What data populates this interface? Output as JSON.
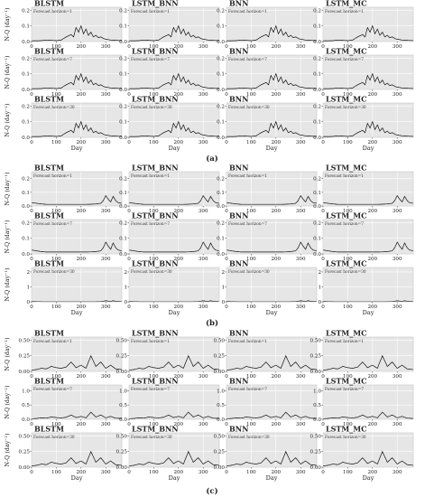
{
  "chart_data": [
    {
      "type": "area",
      "label": "(a)",
      "xlabel": "Day",
      "ylabel": "N-Q (day⁻¹)",
      "xlim": [
        0,
        365
      ],
      "xticks": [
        0,
        100,
        200,
        300
      ],
      "models": [
        "BLSTM",
        "LSTM_BNN",
        "BNN",
        "LSTM_MC"
      ],
      "horizons": [
        "Forecast horizon=1",
        "Forecast horizon=7",
        "Forecast horizon=30"
      ],
      "ylim": [
        [
          0,
          0.22
        ],
        [
          0,
          0.22
        ],
        [
          0,
          0.22
        ]
      ],
      "yticks": [
        [
          0.0,
          0.1,
          0.2
        ],
        [
          0.0,
          0.1,
          0.2
        ],
        [
          0.0,
          0.1,
          0.2
        ]
      ],
      "observed": {
        "x": [
          0,
          20,
          40,
          60,
          80,
          100,
          120,
          140,
          160,
          170,
          180,
          190,
          200,
          210,
          220,
          230,
          240,
          250,
          260,
          270,
          280,
          290,
          300,
          320,
          340,
          365
        ],
        "y": [
          0.005,
          0.005,
          0.006,
          0.01,
          0.008,
          0.006,
          0.01,
          0.03,
          0.045,
          0.03,
          0.09,
          0.06,
          0.1,
          0.05,
          0.08,
          0.04,
          0.06,
          0.03,
          0.04,
          0.025,
          0.03,
          0.02,
          0.015,
          0.01,
          0.008,
          0.006
        ]
      },
      "uncertainty": [
        [
          [
            0.02,
            0.02,
            0.02,
            0.03
          ],
          [
            0.02,
            0.02,
            0.03,
            0.08
          ],
          [
            0.02,
            0.02,
            0.03,
            0.1
          ]
        ],
        [
          [
            0.02,
            0.02,
            0.03,
            0.08
          ],
          [
            0.02,
            0.02,
            0.03,
            0.08
          ],
          [
            0.02,
            0.02,
            0.03,
            0.1
          ]
        ],
        [
          [
            0.02,
            0.03,
            0.03,
            0.1
          ],
          [
            0.02,
            0.03,
            0.04,
            0.1
          ],
          [
            0.02,
            0.03,
            0.04,
            0.1
          ]
        ]
      ]
    },
    {
      "type": "area",
      "label": "(b)",
      "xlabel": "Day",
      "ylabel": "N-Q (day⁻¹)",
      "xlim": [
        0,
        365
      ],
      "xticks": [
        0,
        100,
        200,
        300
      ],
      "models": [
        "BLSTM",
        "LSTM_BNN",
        "BNN",
        "LSTM_MC"
      ],
      "horizons": [
        "Forecast horizon=1",
        "Forecast horizon=7",
        "Forecast horizon=30"
      ],
      "ylim": [
        [
          0,
          0.25
        ],
        [
          0,
          0.22
        ],
        [
          0,
          2.3
        ]
      ],
      "yticks": [
        [
          0.0,
          0.1,
          0.2
        ],
        [
          0.0,
          0.1,
          0.2
        ],
        [
          0,
          1,
          2
        ]
      ],
      "observed": {
        "x": [
          0,
          20,
          40,
          60,
          80,
          100,
          120,
          140,
          160,
          180,
          200,
          220,
          240,
          260,
          280,
          290,
          300,
          310,
          320,
          330,
          340,
          350,
          365
        ],
        "y": [
          0.025,
          0.02,
          0.015,
          0.012,
          0.012,
          0.012,
          0.012,
          0.012,
          0.012,
          0.012,
          0.012,
          0.012,
          0.013,
          0.015,
          0.02,
          0.04,
          0.075,
          0.05,
          0.03,
          0.07,
          0.04,
          0.025,
          0.02
        ]
      },
      "uncertainty": [
        [
          [
            0.01,
            0.005,
            0.02,
            0.02
          ],
          [
            0.01,
            0.01,
            0.15,
            0.05
          ],
          [
            0.01,
            0.01,
            0.02,
            0.15
          ]
        ],
        [
          [
            0.01,
            0.02,
            0.05,
            0.02
          ],
          [
            0.01,
            0.04,
            0.19,
            0.02
          ],
          [
            0.01,
            0.02,
            0.03,
            0.02
          ]
        ],
        [
          [
            0.05,
            0.05,
            1.2,
            0.05
          ],
          [
            0.05,
            0.1,
            1.85,
            0.2
          ],
          [
            0.05,
            0.08,
            1.1,
            0.15
          ]
        ]
      ]
    },
    {
      "type": "area",
      "label": "(c)",
      "xlabel": "Day",
      "ylabel": "N-Q (day⁻¹)",
      "xlim": [
        0,
        365
      ],
      "xticks": [
        0,
        100,
        200,
        300
      ],
      "models": [
        "BLSTM",
        "LSTM_BNN",
        "BNN",
        "LSTM_MC"
      ],
      "horizons": [
        "Forecast horizon=1",
        "Forecast horizon=7",
        "Forecast horizon=30"
      ],
      "ylim": [
        [
          0,
          0.55
        ],
        [
          0,
          1.2
        ],
        [
          0,
          0.55
        ]
      ],
      "yticks": [
        [
          0.0,
          0.25,
          0.5
        ],
        [
          0.0,
          0.5,
          1.0
        ],
        [
          0.0,
          0.25,
          0.5
        ]
      ],
      "observed": {
        "x": [
          0,
          20,
          40,
          60,
          80,
          100,
          120,
          140,
          160,
          180,
          200,
          220,
          240,
          260,
          280,
          300,
          320,
          340,
          365
        ],
        "y": [
          0.02,
          0.03,
          0.05,
          0.04,
          0.08,
          0.06,
          0.05,
          0.07,
          0.15,
          0.06,
          0.1,
          0.05,
          0.25,
          0.08,
          0.15,
          0.05,
          0.1,
          0.04,
          0.03
        ]
      },
      "uncertainty": [
        [
          [
            0.05,
            0.05,
            0.1,
            0.05
          ],
          [
            0.05,
            0.08,
            0.1,
            0.05
          ],
          [
            0.05,
            0.1,
            0.1,
            0.08
          ]
        ],
        [
          [
            0.05,
            0.3,
            0.05,
            0.05
          ],
          [
            0.03,
            0.7,
            0.04,
            0.04
          ],
          [
            0.05,
            0.25,
            0.05,
            0.05
          ]
        ],
        [
          [
            0.1,
            0.15,
            0.05,
            0.08
          ],
          [
            0.1,
            0.2,
            0.04,
            0.08
          ],
          [
            0.12,
            0.2,
            0.05,
            0.12
          ]
        ]
      ]
    }
  ]
}
